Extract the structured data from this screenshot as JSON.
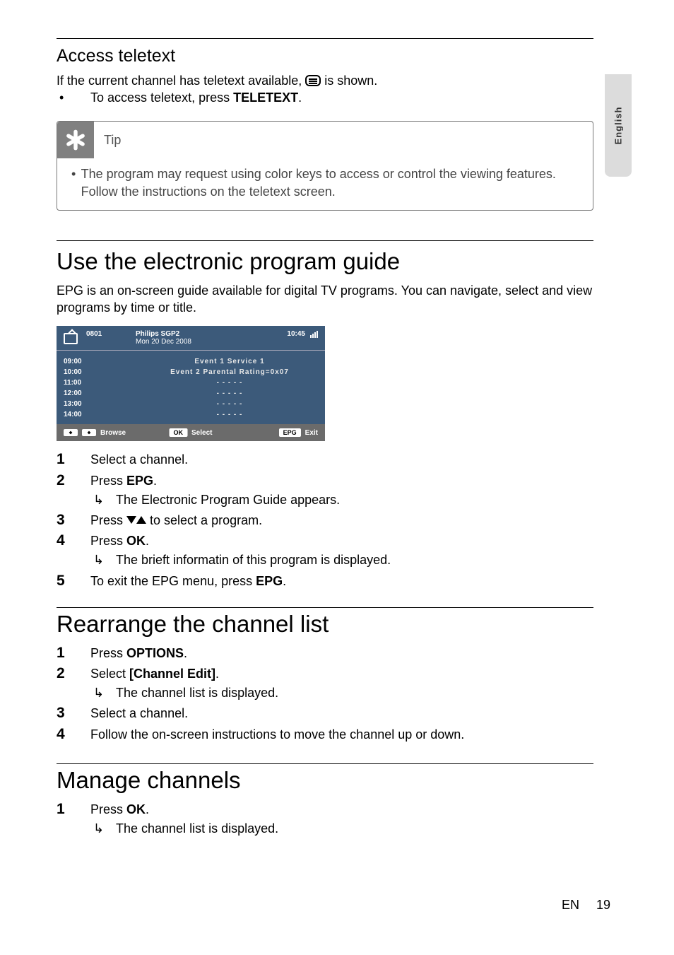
{
  "side_tab": "English",
  "teletext": {
    "heading": "Access teletext",
    "intro_before": "If the current channel has teletext available, ",
    "intro_after": " is shown.",
    "bullet_before": "To access teletext, press ",
    "bullet_bold": "TELETEXT",
    "bullet_after": "."
  },
  "tip": {
    "label": "Tip",
    "text": "The program may request using color keys to access or control the viewing features. Follow the instructions on the teletext screen."
  },
  "epg_section": {
    "heading": "Use the electronic program guide",
    "intro": "EPG is an on-screen guide available for digital TV programs. You can navigate, select and view programs by time or title."
  },
  "epg_screenshot": {
    "bg": "#3c5a7a",
    "footer_bg": "#6b6b6b",
    "channel_num": "0801",
    "title": "Philips SGP2",
    "date": "Mon 20 Dec 2008",
    "clock": "10:45",
    "rows": [
      {
        "time": "09:00",
        "event": "Event  1  Service  1"
      },
      {
        "time": "10:00",
        "event": "Event  2  Parental Rating=0x07"
      },
      {
        "time": "11:00",
        "event": "- - - - -"
      },
      {
        "time": "12:00",
        "event": "- - - - -"
      },
      {
        "time": "13:00",
        "event": "- - - - -"
      },
      {
        "time": "14:00",
        "event": "- - - - -"
      }
    ],
    "footer": {
      "browse": "Browse",
      "ok": "OK",
      "select": "Select",
      "epg": "EPG",
      "exit": "Exit"
    }
  },
  "epg_steps": [
    {
      "n": "1",
      "text": "Select a channel."
    },
    {
      "n": "2",
      "pre": "Press ",
      "bold": "EPG",
      "post": ".",
      "sub": "The Electronic Program Guide appears."
    },
    {
      "n": "3",
      "pre": "Press ",
      "icons": true,
      "post": " to select a program."
    },
    {
      "n": "4",
      "pre": "Press ",
      "bold": "OK",
      "post": ".",
      "sub": "The brieft informatin of this program is displayed."
    },
    {
      "n": "5",
      "pre": "To exit the EPG menu, press ",
      "bold": "EPG",
      "post": "."
    }
  ],
  "rearrange": {
    "heading": "Rearrange the channel list",
    "steps": [
      {
        "n": "1",
        "pre": "Press ",
        "bold": "OPTIONS",
        "post": "."
      },
      {
        "n": "2",
        "pre": "Select ",
        "bold": "[Channel Edit]",
        "post": ".",
        "sub": "The channel list is displayed."
      },
      {
        "n": "3",
        "text": "Select a channel."
      },
      {
        "n": "4",
        "text": "Follow the on-screen instructions to move the channel up or down."
      }
    ]
  },
  "manage": {
    "heading": "Manage channels",
    "steps": [
      {
        "n": "1",
        "pre": "Press ",
        "bold": "OK",
        "post": ".",
        "sub": "The channel list is displayed."
      }
    ]
  },
  "footer": {
    "lang": "EN",
    "page": "19"
  }
}
